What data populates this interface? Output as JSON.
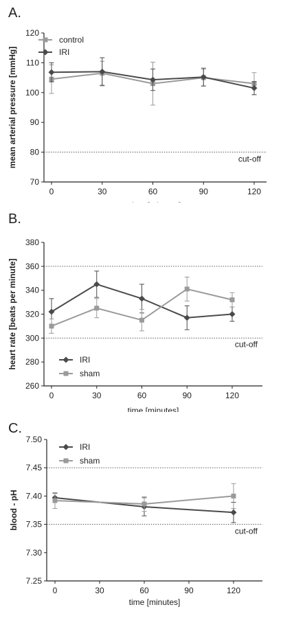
{
  "colors": {
    "control": "#9a9a9a",
    "sham": "#9a9a9a",
    "IRI": "#4a4a4a",
    "axis": "#222222",
    "cutoff": "#444444"
  },
  "panels": [
    {
      "letter": "A.",
      "chart_data": {
        "type": "line",
        "xlabel": "time [minutes]",
        "ylabel": "mean arterial pressure [mmHg]",
        "x": [
          0,
          30,
          60,
          90,
          120
        ],
        "xticks": [
          "0",
          "30",
          "60",
          "90",
          "120"
        ],
        "yticks": [
          "70",
          "80",
          "90",
          "100",
          "110",
          "120"
        ],
        "xlim": [
          0,
          120
        ],
        "ylim": [
          70,
          120
        ],
        "cutoff_lines": [
          80
        ],
        "cutoff_label": "cut-off",
        "legend_position": "top-left",
        "series": [
          {
            "name": "control",
            "marker": "square",
            "values": [
              104.5,
              106.5,
              103,
              105,
              103
            ],
            "err": [
              4.8,
              4.0,
              7.2,
              2.8,
              3.7
            ]
          },
          {
            "name": "IRI",
            "marker": "diamond",
            "values": [
              106.8,
              107,
              104.3,
              105.2,
              101.5
            ],
            "err": [
              3.2,
              4.7,
              3.6,
              3.0,
              2.2
            ]
          }
        ]
      }
    },
    {
      "letter": "B.",
      "chart_data": {
        "type": "line",
        "xlabel": "time [minutes]",
        "ylabel": "heart rate [beats per minute]",
        "x": [
          0,
          30,
          60,
          90,
          120
        ],
        "xticks": [
          "0",
          "30",
          "60",
          "90",
          "120"
        ],
        "yticks": [
          "260",
          "280",
          "300",
          "320",
          "340",
          "360",
          "380"
        ],
        "xlim": [
          0,
          120
        ],
        "ylim": [
          260,
          380
        ],
        "cutoff_lines": [
          300,
          360
        ],
        "cutoff_label": "cut-off",
        "legend_position": "bottom-left",
        "series": [
          {
            "name": "IRI",
            "marker": "diamond",
            "values": [
              322,
              345,
              333,
              317,
              320
            ],
            "err": [
              11,
              11,
              12,
              10,
              6
            ]
          },
          {
            "name": "sham",
            "marker": "square",
            "values": [
              310,
              325,
              315,
              341,
              332
            ],
            "err": [
              6,
              8,
              9,
              10,
              6
            ]
          }
        ]
      }
    },
    {
      "letter": "C.",
      "chart_data": {
        "type": "line",
        "xlabel": "time [minutes]",
        "ylabel": "blood - pH",
        "x": [
          0,
          60,
          120
        ],
        "xticks": [
          "0",
          "30",
          "60",
          "90",
          "120"
        ],
        "yticks": [
          "7.25",
          "7.30",
          "7.35",
          "7.40",
          "7.45",
          "7.50"
        ],
        "xlim": [
          0,
          120
        ],
        "ylim": [
          7.25,
          7.5
        ],
        "cutoff_lines": [
          7.35,
          7.45
        ],
        "cutoff_label": "cut-off",
        "legend_position": "top-left",
        "series": [
          {
            "name": "IRI",
            "marker": "diamond",
            "values": [
              7.397,
              7.381,
              7.371
            ],
            "err": [
              0.008,
              0.016,
              0.018
            ]
          },
          {
            "name": "sham",
            "marker": "square",
            "values": [
              7.392,
              7.386,
              7.4
            ],
            "err": [
              0.014,
              0.013,
              0.022
            ]
          }
        ]
      }
    }
  ]
}
